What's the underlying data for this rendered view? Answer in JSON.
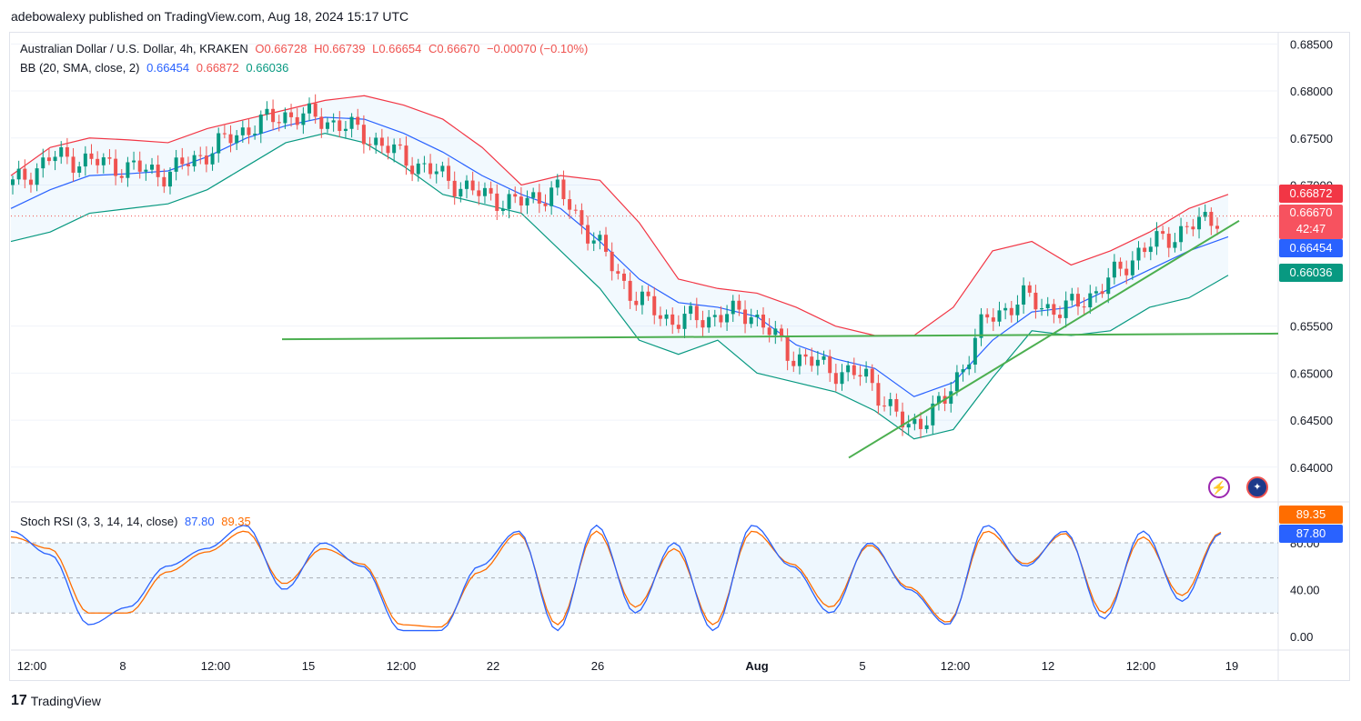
{
  "header": {
    "publisher_line": "adebowalexy published on TradingView.com, Aug 18, 2024 15:17 UTC"
  },
  "legend": {
    "symbol": "Australian Dollar / U.S. Dollar, 4h, KRAKEN",
    "open": "O0.66728",
    "high": "H0.66739",
    "low": "L0.66654",
    "close": "C0.66670",
    "change": "−0.00070 (−0.10%)",
    "bb_label": "BB (20, SMA, close, 2)",
    "bb_basis": "0.66454",
    "bb_upper": "0.66872",
    "bb_lower": "0.66036",
    "stoch_label": "Stoch RSI (3, 3, 14, 14, close)",
    "stoch_k": "87.80",
    "stoch_d": "89.35"
  },
  "price_tags": {
    "upper": "0.66872",
    "last_price": "0.66670",
    "countdown": "42:47",
    "basis": "0.66454",
    "lower": "0.66036"
  },
  "osc_tags": {
    "d": "89.35",
    "k": "87.80"
  },
  "footer": {
    "brand": "TradingView"
  },
  "icons": {
    "flash": "lightning-icon",
    "flag": "australia-flag-icon"
  },
  "colors": {
    "up": "#089981",
    "down": "#ef5350",
    "bb_upper": "#f23645",
    "bb_basis": "#2962ff",
    "bb_lower": "#089981",
    "bb_fill": "#2196f3",
    "trend": "#4caf50",
    "k": "#2962ff",
    "d": "#ff6d00"
  },
  "chart_data": [
    {
      "type": "candlestick",
      "title": "Australian Dollar / U.S. Dollar, 4h, KRAKEN",
      "y_ticks": [
        "0.68500",
        "0.68000",
        "0.67500",
        "0.67000",
        "0.65500",
        "0.65000",
        "0.64500",
        "0.64000"
      ],
      "ylim": [
        0.6365,
        0.686
      ],
      "x_ticks": [
        "12:00",
        "8",
        "12:00",
        "15",
        "12:00",
        "22",
        "26",
        "Aug",
        "5",
        "12:00",
        "12",
        "12:00",
        "19"
      ],
      "bollinger_bands": {
        "upper": [
          0.671,
          0.674,
          0.675,
          0.6748,
          0.6745,
          0.676,
          0.677,
          0.678,
          0.679,
          0.6795,
          0.6785,
          0.677,
          0.674,
          0.67,
          0.671,
          0.6705,
          0.666,
          0.66,
          0.659,
          0.6585,
          0.657,
          0.655,
          0.654,
          0.654,
          0.657,
          0.663,
          0.664,
          0.6615,
          0.663,
          0.665,
          0.6675,
          0.669
        ],
        "basis": [
          0.6675,
          0.6695,
          0.671,
          0.6712,
          0.6715,
          0.673,
          0.675,
          0.6763,
          0.6772,
          0.677,
          0.6755,
          0.6735,
          0.671,
          0.669,
          0.6675,
          0.664,
          0.66,
          0.6575,
          0.657,
          0.656,
          0.653,
          0.6515,
          0.6505,
          0.6475,
          0.649,
          0.6535,
          0.6565,
          0.657,
          0.659,
          0.661,
          0.663,
          0.6645
        ],
        "lower": [
          0.664,
          0.665,
          0.667,
          0.6675,
          0.668,
          0.6695,
          0.672,
          0.6745,
          0.6755,
          0.6745,
          0.672,
          0.669,
          0.668,
          0.667,
          0.663,
          0.659,
          0.6535,
          0.652,
          0.6535,
          0.65,
          0.649,
          0.648,
          0.646,
          0.643,
          0.644,
          0.6495,
          0.6545,
          0.654,
          0.6545,
          0.657,
          0.658,
          0.6604
        ]
      },
      "close": [
        0.67,
        0.673,
        0.6725,
        0.6718,
        0.6712,
        0.6735,
        0.676,
        0.6775,
        0.677,
        0.6755,
        0.673,
        0.671,
        0.669,
        0.668,
        0.6695,
        0.664,
        0.658,
        0.6555,
        0.656,
        0.6565,
        0.652,
        0.6505,
        0.6495,
        0.644,
        0.647,
        0.6555,
        0.658,
        0.6565,
        0.659,
        0.663,
        0.665,
        0.6667
      ],
      "trendlines": [
        {
          "name": "support",
          "from": [
            0.6536,
            "Jul 14"
          ],
          "to": [
            0.6542,
            "Aug 18"
          ]
        },
        {
          "name": "rising",
          "from": [
            0.641,
            "Aug 5"
          ],
          "to": [
            0.6662,
            "Aug 18"
          ]
        }
      ]
    },
    {
      "type": "line",
      "title": "Stoch RSI (3, 3, 14, 14, close)",
      "y_ticks": [
        "0.00",
        "40.00",
        "80.00"
      ],
      "ylim": [
        0,
        100
      ],
      "series": [
        {
          "name": "K",
          "values": [
            90,
            70,
            10,
            25,
            60,
            75,
            95,
            40,
            80,
            60,
            5,
            5,
            60,
            90,
            5,
            95,
            20,
            80,
            5,
            95,
            60,
            20,
            80,
            40,
            10,
            95,
            60,
            90,
            15,
            90,
            30,
            88
          ]
        },
        {
          "name": "D",
          "values": [
            85,
            75,
            20,
            20,
            55,
            72,
            90,
            45,
            75,
            62,
            10,
            8,
            55,
            88,
            10,
            90,
            25,
            75,
            10,
            90,
            62,
            25,
            78,
            42,
            12,
            90,
            62,
            88,
            20,
            85,
            35,
            89
          ]
        }
      ]
    }
  ]
}
